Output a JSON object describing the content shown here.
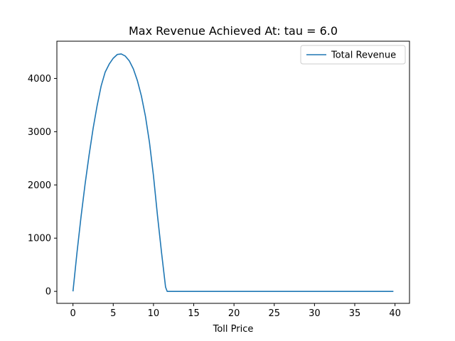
{
  "chart_data": {
    "type": "line",
    "title": "Max Revenue Achieved At: tau = 6.0",
    "xlabel": "Toll Price",
    "ylabel": "",
    "xlim": [
      -2,
      41.8
    ],
    "ylim": [
      -225,
      4700
    ],
    "xticks": [
      0,
      5,
      10,
      15,
      20,
      25,
      30,
      35,
      40
    ],
    "yticks": [
      0,
      1000,
      2000,
      3000,
      4000
    ],
    "grid": false,
    "legend_position": "top-right",
    "series": [
      {
        "name": "Total Revenue",
        "color": "#1f77b4",
        "x": [
          0,
          0.5,
          1,
          1.5,
          2,
          2.5,
          3,
          3.5,
          4,
          4.5,
          5,
          5.5,
          6,
          6.5,
          7,
          7.5,
          8,
          8.5,
          9,
          9.5,
          10,
          10.5,
          11,
          11.5,
          11.7,
          12,
          15,
          20,
          25,
          30,
          35,
          39.8
        ],
        "y": [
          0,
          730,
          1400,
          2010,
          2560,
          3060,
          3490,
          3860,
          4120,
          4270,
          4380,
          4450,
          4460,
          4420,
          4330,
          4180,
          3960,
          3670,
          3290,
          2800,
          2170,
          1420,
          730,
          80,
          0,
          0,
          0,
          0,
          0,
          0,
          0,
          0
        ]
      }
    ]
  }
}
